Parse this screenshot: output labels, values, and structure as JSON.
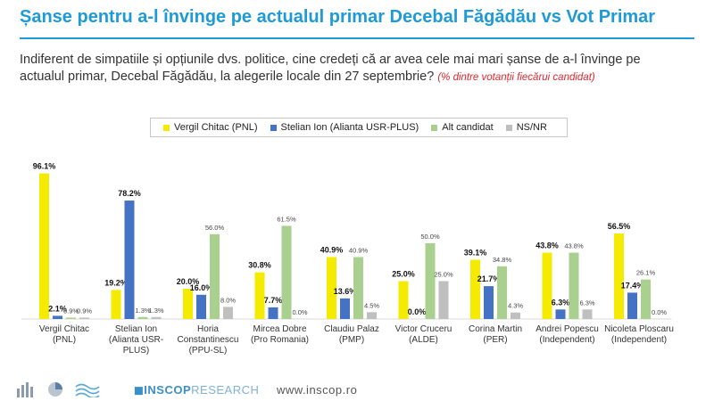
{
  "header": {
    "title": "Șanse pentru a-l învinge pe actualul primar Decebal Făgădău vs Vot Primar",
    "question": "Indiferent de simpatiile și opțiunile dvs. politice, cine credeți că ar avea cele mai mari șanse de a-l învinge pe actualul primar, Decebal Făgădău, la alegerile locale din 27 septembrie?",
    "note": "(% dintre votanții fiecărui candidat)"
  },
  "footer": {
    "brand_bold": "INSCOP",
    "brand_light": "RESEARCH",
    "website": "www.inscop.ro",
    "icons": [
      "bar-chart-icon",
      "pie-chart-icon",
      "wave-icon"
    ]
  },
  "colors": {
    "title": "#1e9ad6",
    "Vergil Chitac (PNL)": "#f5eb00",
    "Stelian Ion (Alianta USR-PLUS)": "#4472c4",
    "Alt candidat": "#a9d08e",
    "NS/NR": "#bfbfbf"
  },
  "chart_data": {
    "type": "bar",
    "categories": [
      "Vergil Chitac (PNL)",
      "Stelian Ion (Alianta USR-PLUS)",
      "Horia Constantinescu (PPU-SL)",
      "Mircea Dobre (Pro Romania)",
      "Claudiu Palaz (PMP)",
      "Victor Cruceru (ALDE)",
      "Corina Martin (PER)",
      "Andrei Popescu (Independent)",
      "Nicoleta Ploscaru (Independent)"
    ],
    "category_lines": [
      [
        "Vergil Chitac",
        "(PNL)"
      ],
      [
        "Stelian Ion",
        "(Alianta USR-",
        "PLUS)"
      ],
      [
        "Horia",
        "Constantinescu",
        "(PPU-SL)"
      ],
      [
        "Mircea Dobre",
        "(Pro Romania)"
      ],
      [
        "Claudiu Palaz",
        "(PMP)"
      ],
      [
        "Victor Cruceru",
        "(ALDE)"
      ],
      [
        "Corina Martin",
        "(PER)"
      ],
      [
        "Andrei Popescu",
        "(Independent)"
      ],
      [
        "Nicoleta Ploscaru",
        "(Independent)"
      ]
    ],
    "series": [
      {
        "name": "Vergil Chitac (PNL)",
        "values": [
          96.1,
          19.2,
          20.0,
          30.8,
          40.9,
          25.0,
          39.1,
          43.8,
          56.5
        ]
      },
      {
        "name": "Stelian Ion (Alianta USR-PLUS)",
        "values": [
          2.1,
          78.2,
          16.0,
          7.7,
          13.6,
          0.0,
          21.7,
          6.3,
          17.4
        ]
      },
      {
        "name": "Alt candidat",
        "values": [
          0.9,
          1.3,
          56.0,
          61.5,
          40.9,
          50.0,
          34.8,
          43.8,
          26.1
        ]
      },
      {
        "name": "NS/NR",
        "values": [
          0.9,
          1.3,
          8.0,
          0.0,
          4.5,
          25.0,
          4.3,
          6.3,
          0.0
        ]
      }
    ],
    "value_suffix": "%",
    "ylim": [
      0,
      100
    ],
    "grid": false,
    "legend_position": "top"
  }
}
